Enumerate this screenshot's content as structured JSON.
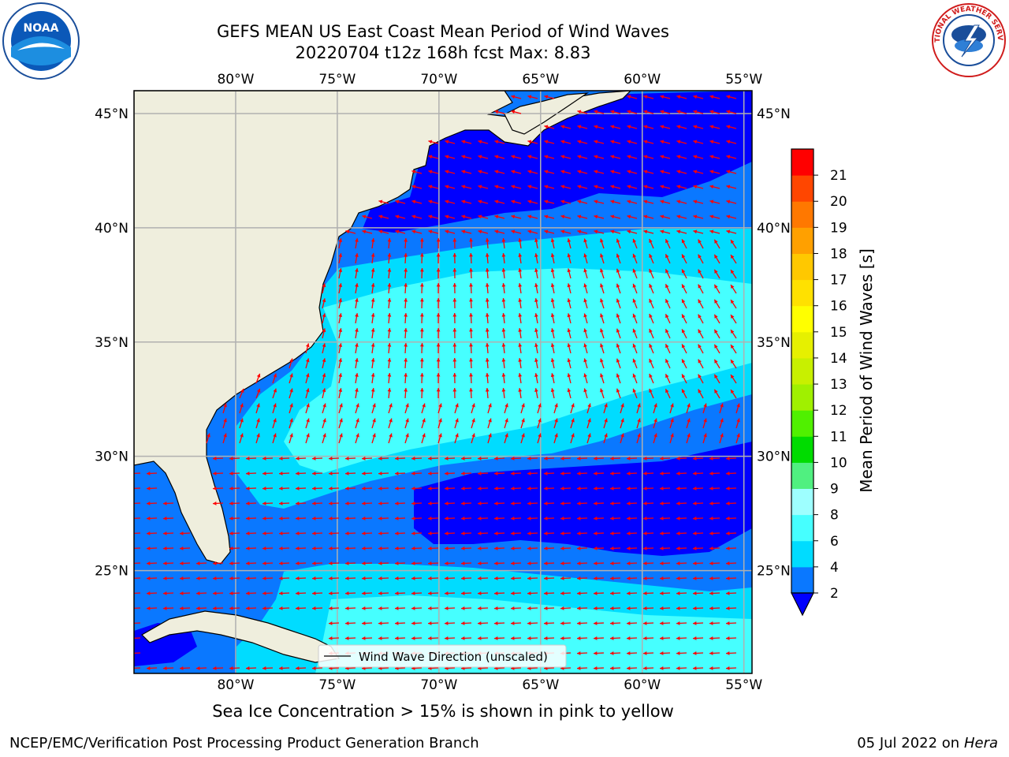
{
  "header": {
    "title_line1": "GEFS MEAN US East Coast Mean Period of Wind Waves",
    "title_line2": "20220704 t12z 168h fcst   Max: 8.83"
  },
  "subtitle": "Sea Ice Concentration > 15% is shown in pink to yellow",
  "footer": {
    "left": "NCEP/EMC/Verification Post Processing Product Generation Branch",
    "date": "05 Jul 2022 on ",
    "host": "Hera"
  },
  "logos": {
    "left_label": "NOAA",
    "right_label": "NATIONAL WEATHER SERVICE"
  },
  "map": {
    "lon_ticks": [
      "80°W",
      "75°W",
      "70°W",
      "65°W",
      "60°W",
      "55°W"
    ],
    "lat_ticks": [
      "45°N",
      "40°N",
      "35°N",
      "30°N",
      "25°N"
    ],
    "lon_range": [
      -85,
      -54.6
    ],
    "lat_range": [
      20.5,
      46
    ],
    "land_color": "#efeedd",
    "arrow_color": "#ff0000",
    "grid_color": "#b0b0b0",
    "legend_label": "Wind Wave Direction (unscaled)"
  },
  "colorbar": {
    "label": "Mean Period of Wind Waves [s]",
    "tick_labels": [
      "2",
      "4",
      "6",
      "8",
      "9",
      "10",
      "11",
      "12",
      "13",
      "14",
      "15",
      "16",
      "17",
      "18",
      "19",
      "20",
      "21"
    ],
    "colors": [
      "#0a78ff",
      "#00dcff",
      "#46ffff",
      "#9effff",
      "#50f080",
      "#00dc00",
      "#50f000",
      "#a0f000",
      "#c8f000",
      "#e6f000",
      "#ffff00",
      "#ffe100",
      "#ffc800",
      "#ffa000",
      "#ff7800",
      "#ff4600",
      "#ff0000"
    ],
    "under_color": "#0000ff"
  }
}
